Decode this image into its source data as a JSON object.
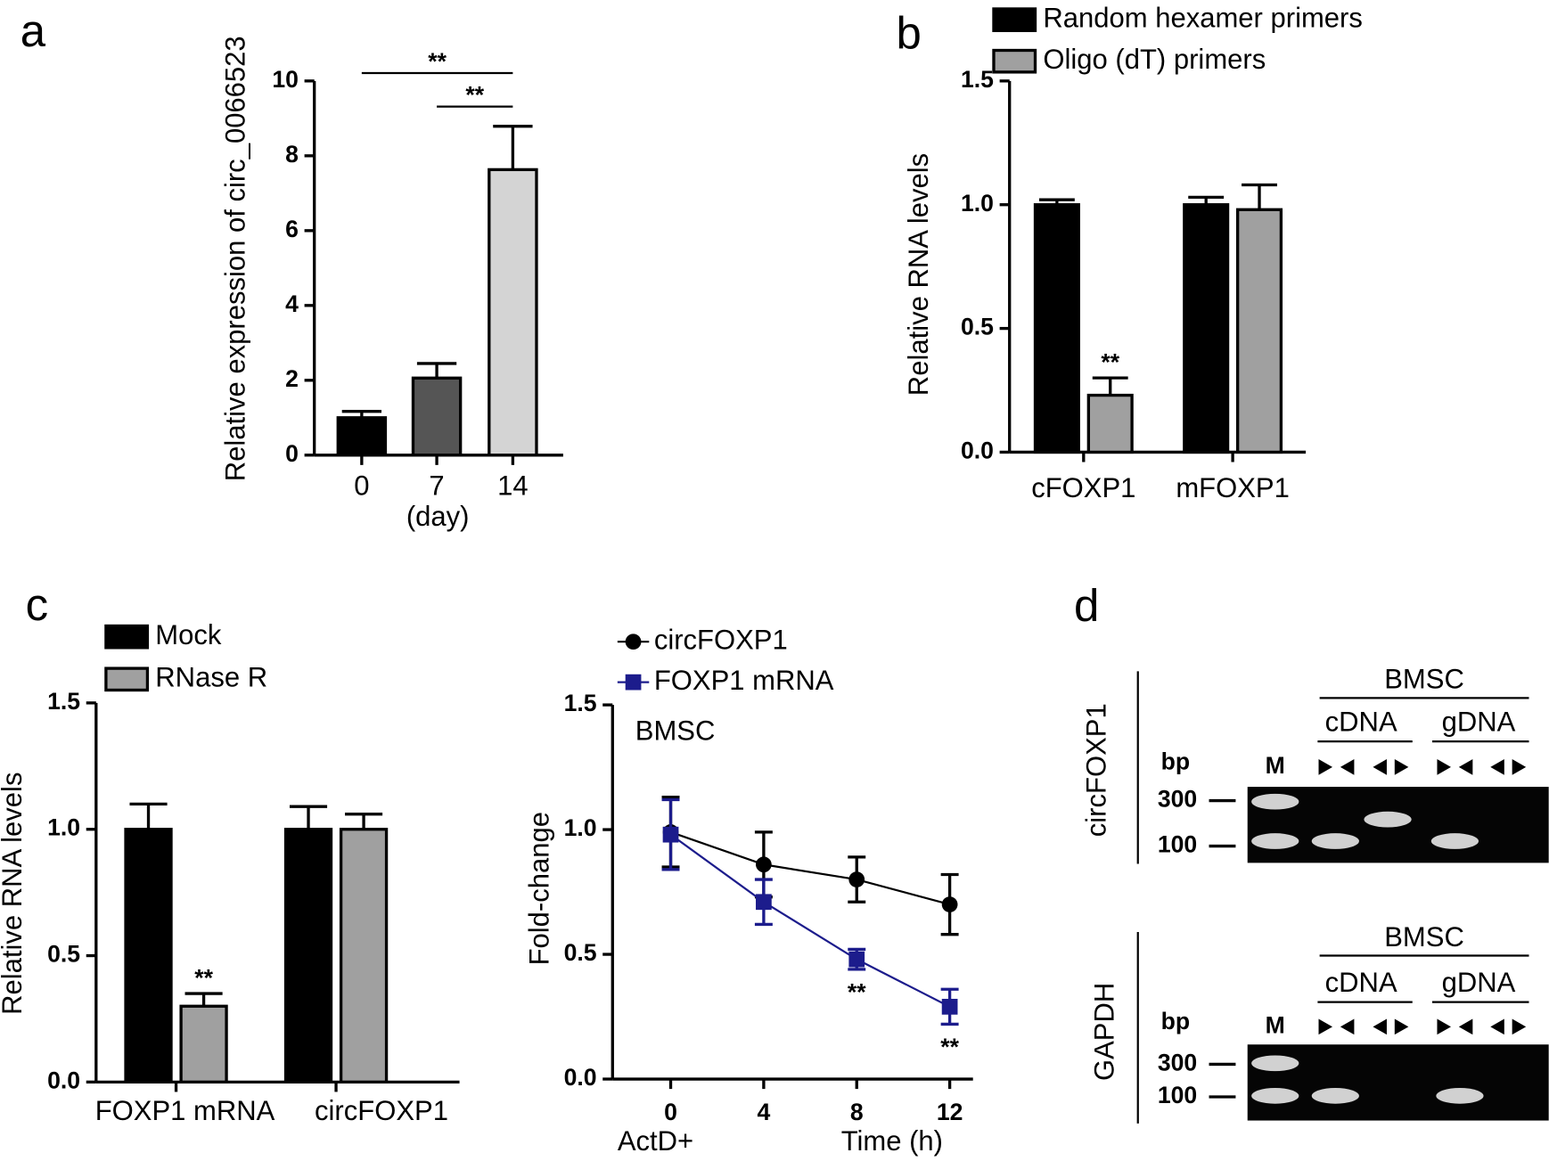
{
  "panel_labels": [
    "a",
    "b",
    "c",
    "d"
  ],
  "chart_data": [
    {
      "type": "bar",
      "y_label": "Relative expression of circ_0066523",
      "x_label": "(day)",
      "categories": [
        "0",
        "7",
        "14"
      ],
      "values": [
        1.0,
        2.06,
        7.63
      ],
      "errors": [
        0.17,
        0.39,
        1.16
      ],
      "colors": [
        "#000000",
        "#555555",
        "#d4d4d4"
      ],
      "ylim": [
        0,
        10
      ],
      "yticks": [
        0,
        2,
        4,
        6,
        8,
        10
      ],
      "annotations": [
        "**",
        "**"
      ]
    },
    {
      "type": "bar",
      "y_label": "Relative RNA levels",
      "categories": [
        "cFOXP1",
        "mFOXP1"
      ],
      "series": [
        {
          "name": "Random hexamer primers",
          "color": "#000000",
          "values": [
            1.0,
            1.0
          ],
          "errors": [
            0.02,
            0.03
          ]
        },
        {
          "name": "Oligo (dT) primers",
          "color": "#a0a0a0",
          "values": [
            0.23,
            0.98
          ],
          "errors": [
            0.07,
            0.1
          ]
        }
      ],
      "ylim": [
        0,
        1.5
      ],
      "yticks": [
        {
          "value": 0,
          "label": "0.0"
        },
        {
          "value": 0.5,
          "label": "0.5"
        },
        {
          "value": 1,
          "label": "1.0"
        },
        {
          "value": 1.5,
          "label": "1.5"
        }
      ],
      "annotations": [
        "**"
      ]
    },
    {
      "type": "bar",
      "y_label": "Relative RNA levels",
      "categories": [
        "FOXP1 mRNA",
        "circFOXP1"
      ],
      "series": [
        {
          "name": "Mock",
          "color": "#000000",
          "values": [
            1.0,
            1.0
          ],
          "errors": [
            0.1,
            0.09
          ]
        },
        {
          "name": "RNase R",
          "color": "#a0a0a0",
          "values": [
            0.3,
            1.0
          ],
          "errors": [
            0.05,
            0.06
          ]
        }
      ],
      "ylim": [
        0,
        1.5
      ],
      "yticks": [
        {
          "value": 0,
          "label": "0.0"
        },
        {
          "value": 0.5,
          "label": "0.5"
        },
        {
          "value": 1,
          "label": "1.0"
        },
        {
          "value": 1.5,
          "label": "1.5"
        }
      ],
      "annotations": [
        "**"
      ]
    },
    {
      "type": "line",
      "y_label": "Fold-change",
      "x_label": "Time (h)",
      "x_prefix": "ActD+",
      "inset_label": "BMSC",
      "x": [
        0,
        4,
        8,
        12
      ],
      "series": [
        {
          "name": "circFOXP1",
          "color": "#000000",
          "marker": "circle",
          "values": [
            0.99,
            0.86,
            0.8,
            0.7
          ],
          "errors": [
            0.14,
            0.13,
            0.09,
            0.12
          ]
        },
        {
          "name": "FOXP1 mRNA",
          "color": "#1c1c8c",
          "marker": "square",
          "values": [
            0.98,
            0.71,
            0.48,
            0.29
          ],
          "errors": [
            0.14,
            0.09,
            0.04,
            0.07
          ]
        }
      ],
      "xlim": [
        -2.5,
        13
      ],
      "xticks": [
        0,
        4,
        8,
        12
      ],
      "ylim": [
        0,
        1.5
      ],
      "yticks": [
        {
          "value": 0,
          "label": "0.0"
        },
        {
          "value": 0.5,
          "label": "0.5"
        },
        {
          "value": 1,
          "label": "1.0"
        },
        {
          "value": 1.5,
          "label": "1.5"
        }
      ],
      "annotations": [
        "**",
        "**"
      ]
    }
  ],
  "gels": [
    {
      "target": "circFOXP1",
      "group": "BMSC",
      "subgroups": [
        "cDNA",
        "gDNA"
      ],
      "unit": "bp",
      "marker": "M",
      "sizes": [
        "300",
        "100"
      ]
    },
    {
      "target": "GAPDH",
      "group": "BMSC",
      "subgroups": [
        "cDNA",
        "gDNA"
      ],
      "unit": "bp",
      "marker": "M",
      "sizes": [
        "300",
        "100"
      ]
    }
  ]
}
